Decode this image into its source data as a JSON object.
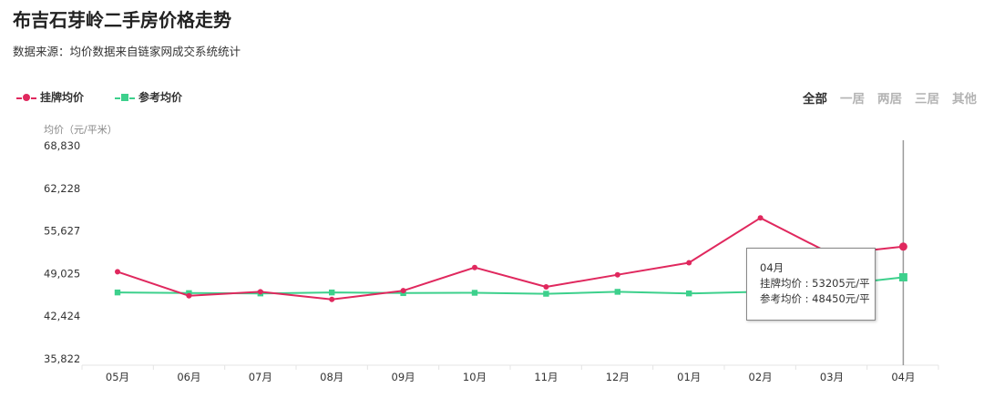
{
  "title": "布吉石芽岭二手房价格走势",
  "subtitle": "数据来源：均价数据来自链家网成交系统统计",
  "legend": [
    {
      "label": "挂牌均价",
      "color": "#e0285e",
      "marker": "circle"
    },
    {
      "label": "参考均价",
      "color": "#3dd08c",
      "marker": "square"
    }
  ],
  "tabs": [
    {
      "label": "全部",
      "active": true
    },
    {
      "label": "一居",
      "active": false
    },
    {
      "label": "两居",
      "active": false
    },
    {
      "label": "三居",
      "active": false
    },
    {
      "label": "其他",
      "active": false
    }
  ],
  "tooltip": {
    "title": "04月",
    "line1": "挂牌均价 : 53205元/平",
    "line2": "参考均价 : 48450元/平"
  },
  "chart_data": {
    "type": "line",
    "ylabel": "均价（元/平米）",
    "ylim": [
      35822,
      68830
    ],
    "yticks": [
      "68,830",
      "62,228",
      "55,627",
      "49,025",
      "42,424",
      "35,822"
    ],
    "categories": [
      "05月",
      "06月",
      "07月",
      "08月",
      "09月",
      "10月",
      "11月",
      "12月",
      "01月",
      "02月",
      "03月",
      "04月"
    ],
    "series": [
      {
        "name": "挂牌均价",
        "color": "#e0285e",
        "marker": "circle",
        "values": [
          49310,
          45590,
          46200,
          45020,
          46380,
          49970,
          46970,
          48840,
          50700,
          57650,
          52000,
          53205
        ]
      },
      {
        "name": "参考均价",
        "color": "#3dd08c",
        "marker": "square",
        "values": [
          46100,
          46000,
          45950,
          46100,
          46000,
          46050,
          45900,
          46200,
          45950,
          46200,
          47200,
          48450
        ]
      }
    ],
    "highlight_index": 11,
    "grid": false
  }
}
